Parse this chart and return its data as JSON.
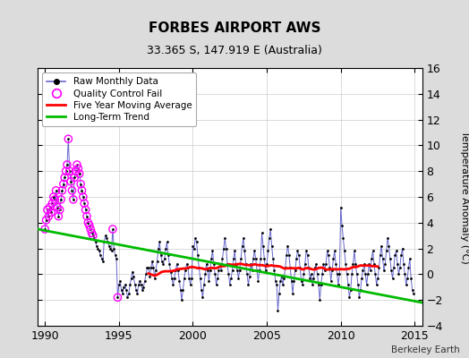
{
  "title": "FORBES AIRPORT AWS",
  "subtitle": "33.365 S, 147.919 E (Australia)",
  "ylabel_right": "Temperature Anomaly (°C)",
  "attribution": "Berkeley Earth",
  "xlim": [
    1989.5,
    2015.5
  ],
  "ylim": [
    -4,
    16
  ],
  "yticks": [
    -4,
    -2,
    0,
    2,
    4,
    6,
    8,
    10,
    12,
    14,
    16
  ],
  "xticks": [
    1990,
    1995,
    2000,
    2005,
    2010,
    2015
  ],
  "bg_color": "#dcdcdc",
  "plot_bg_color": "#ffffff",
  "raw_color": "#6666cc",
  "qc_color": "#ff00ff",
  "ma_color": "#ff0000",
  "trend_color": "#00bb00",
  "raw_data": [
    [
      1990.0,
      3.5
    ],
    [
      1990.083,
      4.2
    ],
    [
      1990.167,
      5.0
    ],
    [
      1990.25,
      4.5
    ],
    [
      1990.333,
      5.2
    ],
    [
      1990.417,
      4.8
    ],
    [
      1990.5,
      5.5
    ],
    [
      1990.583,
      6.0
    ],
    [
      1990.667,
      5.8
    ],
    [
      1990.75,
      6.5
    ],
    [
      1990.833,
      5.2
    ],
    [
      1990.917,
      4.5
    ],
    [
      1991.0,
      5.0
    ],
    [
      1991.083,
      5.8
    ],
    [
      1991.167,
      6.5
    ],
    [
      1991.25,
      7.0
    ],
    [
      1991.333,
      7.5
    ],
    [
      1991.417,
      8.0
    ],
    [
      1991.5,
      8.5
    ],
    [
      1991.583,
      10.5
    ],
    [
      1991.667,
      8.0
    ],
    [
      1991.75,
      7.2
    ],
    [
      1991.833,
      6.5
    ],
    [
      1991.917,
      5.8
    ],
    [
      1992.0,
      7.5
    ],
    [
      1992.083,
      8.0
    ],
    [
      1992.167,
      8.5
    ],
    [
      1992.25,
      8.2
    ],
    [
      1992.333,
      7.8
    ],
    [
      1992.417,
      7.0
    ],
    [
      1992.5,
      6.5
    ],
    [
      1992.583,
      6.0
    ],
    [
      1992.667,
      5.5
    ],
    [
      1992.75,
      5.0
    ],
    [
      1992.833,
      4.5
    ],
    [
      1992.917,
      4.0
    ],
    [
      1993.0,
      3.8
    ],
    [
      1993.083,
      3.5
    ],
    [
      1993.167,
      3.2
    ],
    [
      1993.25,
      3.0
    ],
    [
      1993.333,
      2.8
    ],
    [
      1993.417,
      2.5
    ],
    [
      1993.5,
      2.2
    ],
    [
      1993.583,
      2.0
    ],
    [
      1993.667,
      1.8
    ],
    [
      1993.75,
      1.5
    ],
    [
      1993.833,
      1.2
    ],
    [
      1993.917,
      1.0
    ],
    [
      1994.0,
      2.5
    ],
    [
      1994.083,
      3.0
    ],
    [
      1994.167,
      2.8
    ],
    [
      1994.25,
      2.5
    ],
    [
      1994.333,
      2.2
    ],
    [
      1994.417,
      2.0
    ],
    [
      1994.5,
      1.8
    ],
    [
      1994.583,
      3.5
    ],
    [
      1994.667,
      2.0
    ],
    [
      1994.75,
      1.5
    ],
    [
      1994.833,
      1.2
    ],
    [
      1994.917,
      -1.8
    ],
    [
      1995.0,
      -0.8
    ],
    [
      1995.083,
      -0.5
    ],
    [
      1995.167,
      -1.2
    ],
    [
      1995.25,
      -1.5
    ],
    [
      1995.333,
      -1.0
    ],
    [
      1995.417,
      -0.8
    ],
    [
      1995.5,
      -1.2
    ],
    [
      1995.583,
      -1.8
    ],
    [
      1995.667,
      -1.5
    ],
    [
      1995.75,
      -0.8
    ],
    [
      1995.833,
      -0.3
    ],
    [
      1995.917,
      0.2
    ],
    [
      1996.0,
      -0.2
    ],
    [
      1996.083,
      -0.8
    ],
    [
      1996.167,
      -1.2
    ],
    [
      1996.25,
      -1.5
    ],
    [
      1996.333,
      -0.8
    ],
    [
      1996.417,
      -0.5
    ],
    [
      1996.5,
      -0.8
    ],
    [
      1996.583,
      -1.2
    ],
    [
      1996.667,
      -1.0
    ],
    [
      1996.75,
      -0.5
    ],
    [
      1996.833,
      0.0
    ],
    [
      1996.917,
      0.5
    ],
    [
      1997.0,
      0.5
    ],
    [
      1997.083,
      -0.2
    ],
    [
      1997.167,
      0.5
    ],
    [
      1997.25,
      1.0
    ],
    [
      1997.333,
      0.5
    ],
    [
      1997.417,
      -0.3
    ],
    [
      1997.5,
      0.3
    ],
    [
      1997.583,
      1.0
    ],
    [
      1997.667,
      2.0
    ],
    [
      1997.75,
      2.5
    ],
    [
      1997.833,
      1.5
    ],
    [
      1997.917,
      1.0
    ],
    [
      1998.0,
      0.8
    ],
    [
      1998.083,
      1.2
    ],
    [
      1998.167,
      2.0
    ],
    [
      1998.25,
      2.5
    ],
    [
      1998.333,
      1.5
    ],
    [
      1998.417,
      0.8
    ],
    [
      1998.5,
      0.2
    ],
    [
      1998.583,
      -0.3
    ],
    [
      1998.667,
      -0.8
    ],
    [
      1998.75,
      -0.3
    ],
    [
      1998.833,
      0.3
    ],
    [
      1998.917,
      0.8
    ],
    [
      1999.0,
      0.3
    ],
    [
      1999.083,
      -0.5
    ],
    [
      1999.167,
      -1.2
    ],
    [
      1999.25,
      -2.0
    ],
    [
      1999.333,
      -1.2
    ],
    [
      1999.417,
      -0.3
    ],
    [
      1999.5,
      0.3
    ],
    [
      1999.583,
      0.8
    ],
    [
      1999.667,
      0.5
    ],
    [
      1999.75,
      -0.3
    ],
    [
      1999.833,
      -0.8
    ],
    [
      1999.917,
      -0.3
    ],
    [
      2000.0,
      2.2
    ],
    [
      2000.083,
      2.0
    ],
    [
      2000.167,
      2.8
    ],
    [
      2000.25,
      2.5
    ],
    [
      2000.333,
      1.5
    ],
    [
      2000.417,
      0.5
    ],
    [
      2000.5,
      -0.3
    ],
    [
      2000.583,
      -1.2
    ],
    [
      2000.667,
      -1.8
    ],
    [
      2000.75,
      -0.8
    ],
    [
      2000.833,
      0.0
    ],
    [
      2000.917,
      0.8
    ],
    [
      2001.0,
      0.3
    ],
    [
      2001.083,
      -0.5
    ],
    [
      2001.167,
      0.3
    ],
    [
      2001.25,
      1.2
    ],
    [
      2001.333,
      1.8
    ],
    [
      2001.417,
      0.8
    ],
    [
      2001.5,
      0.0
    ],
    [
      2001.583,
      -0.8
    ],
    [
      2001.667,
      -0.3
    ],
    [
      2001.75,
      0.3
    ],
    [
      2001.833,
      0.8
    ],
    [
      2001.917,
      0.3
    ],
    [
      2002.0,
      1.2
    ],
    [
      2002.083,
      2.0
    ],
    [
      2002.167,
      2.8
    ],
    [
      2002.25,
      2.0
    ],
    [
      2002.333,
      0.8
    ],
    [
      2002.417,
      0.0
    ],
    [
      2002.5,
      -0.8
    ],
    [
      2002.583,
      -0.3
    ],
    [
      2002.667,
      0.3
    ],
    [
      2002.75,
      1.2
    ],
    [
      2002.833,
      1.8
    ],
    [
      2002.917,
      0.8
    ],
    [
      2003.0,
      0.3
    ],
    [
      2003.083,
      -0.3
    ],
    [
      2003.167,
      0.3
    ],
    [
      2003.25,
      1.2
    ],
    [
      2003.333,
      2.2
    ],
    [
      2003.417,
      2.8
    ],
    [
      2003.5,
      1.8
    ],
    [
      2003.583,
      0.8
    ],
    [
      2003.667,
      0.0
    ],
    [
      2003.75,
      -0.8
    ],
    [
      2003.833,
      -0.2
    ],
    [
      2003.917,
      0.8
    ],
    [
      2004.0,
      0.3
    ],
    [
      2004.083,
      1.2
    ],
    [
      2004.167,
      1.8
    ],
    [
      2004.25,
      1.2
    ],
    [
      2004.333,
      0.3
    ],
    [
      2004.417,
      -0.5
    ],
    [
      2004.5,
      0.3
    ],
    [
      2004.583,
      1.2
    ],
    [
      2004.667,
      3.2
    ],
    [
      2004.75,
      2.2
    ],
    [
      2004.833,
      1.2
    ],
    [
      2004.917,
      0.3
    ],
    [
      2005.0,
      0.8
    ],
    [
      2005.083,
      1.8
    ],
    [
      2005.167,
      2.8
    ],
    [
      2005.25,
      3.5
    ],
    [
      2005.333,
      2.2
    ],
    [
      2005.417,
      1.2
    ],
    [
      2005.5,
      0.3
    ],
    [
      2005.583,
      -0.5
    ],
    [
      2005.667,
      -0.8
    ],
    [
      2005.75,
      -2.8
    ],
    [
      2005.833,
      -1.5
    ],
    [
      2005.917,
      -0.5
    ],
    [
      2006.0,
      -0.2
    ],
    [
      2006.083,
      -0.8
    ],
    [
      2006.167,
      -0.3
    ],
    [
      2006.25,
      0.5
    ],
    [
      2006.333,
      1.5
    ],
    [
      2006.417,
      2.2
    ],
    [
      2006.5,
      1.5
    ],
    [
      2006.583,
      0.5
    ],
    [
      2006.667,
      -0.5
    ],
    [
      2006.75,
      -1.5
    ],
    [
      2006.833,
      -0.5
    ],
    [
      2006.917,
      0.3
    ],
    [
      2007.0,
      1.2
    ],
    [
      2007.083,
      1.8
    ],
    [
      2007.167,
      1.5
    ],
    [
      2007.25,
      0.5
    ],
    [
      2007.333,
      -0.5
    ],
    [
      2007.417,
      -0.8
    ],
    [
      2007.5,
      0.0
    ],
    [
      2007.583,
      0.8
    ],
    [
      2007.667,
      1.8
    ],
    [
      2007.75,
      1.5
    ],
    [
      2007.833,
      0.5
    ],
    [
      2007.917,
      -0.3
    ],
    [
      2008.0,
      0.0
    ],
    [
      2008.083,
      -0.8
    ],
    [
      2008.167,
      -0.3
    ],
    [
      2008.25,
      0.5
    ],
    [
      2008.333,
      0.8
    ],
    [
      2008.417,
      0.0
    ],
    [
      2008.5,
      -0.8
    ],
    [
      2008.583,
      -2.0
    ],
    [
      2008.667,
      -0.8
    ],
    [
      2008.75,
      0.0
    ],
    [
      2008.833,
      0.8
    ],
    [
      2008.917,
      0.3
    ],
    [
      2009.0,
      0.8
    ],
    [
      2009.083,
      1.8
    ],
    [
      2009.167,
      1.5
    ],
    [
      2009.25,
      0.5
    ],
    [
      2009.333,
      -0.5
    ],
    [
      2009.417,
      0.3
    ],
    [
      2009.5,
      1.2
    ],
    [
      2009.583,
      1.8
    ],
    [
      2009.667,
      0.8
    ],
    [
      2009.75,
      0.0
    ],
    [
      2009.833,
      -0.8
    ],
    [
      2009.917,
      0.0
    ],
    [
      2010.0,
      5.2
    ],
    [
      2010.083,
      3.8
    ],
    [
      2010.167,
      2.8
    ],
    [
      2010.25,
      1.8
    ],
    [
      2010.333,
      0.8
    ],
    [
      2010.417,
      0.0
    ],
    [
      2010.5,
      -0.8
    ],
    [
      2010.583,
      -1.8
    ],
    [
      2010.667,
      -1.2
    ],
    [
      2010.75,
      0.0
    ],
    [
      2010.833,
      0.8
    ],
    [
      2010.917,
      1.8
    ],
    [
      2011.0,
      0.8
    ],
    [
      2011.083,
      0.0
    ],
    [
      2011.167,
      -0.8
    ],
    [
      2011.25,
      -1.8
    ],
    [
      2011.333,
      -1.2
    ],
    [
      2011.417,
      -0.3
    ],
    [
      2011.5,
      0.3
    ],
    [
      2011.583,
      0.8
    ],
    [
      2011.667,
      0.0
    ],
    [
      2011.75,
      -0.8
    ],
    [
      2011.833,
      0.0
    ],
    [
      2011.917,
      0.8
    ],
    [
      2012.0,
      0.3
    ],
    [
      2012.083,
      1.2
    ],
    [
      2012.167,
      1.8
    ],
    [
      2012.25,
      0.8
    ],
    [
      2012.333,
      0.0
    ],
    [
      2012.417,
      -0.8
    ],
    [
      2012.5,
      -0.3
    ],
    [
      2012.583,
      0.5
    ],
    [
      2012.667,
      1.5
    ],
    [
      2012.75,
      2.2
    ],
    [
      2012.833,
      1.2
    ],
    [
      2012.917,
      0.3
    ],
    [
      2013.0,
      0.8
    ],
    [
      2013.083,
      1.8
    ],
    [
      2013.167,
      2.8
    ],
    [
      2013.25,
      2.2
    ],
    [
      2013.333,
      1.2
    ],
    [
      2013.417,
      0.3
    ],
    [
      2013.5,
      -0.3
    ],
    [
      2013.583,
      0.5
    ],
    [
      2013.667,
      1.5
    ],
    [
      2013.75,
      1.8
    ],
    [
      2013.833,
      0.8
    ],
    [
      2013.917,
      0.0
    ],
    [
      2014.0,
      0.5
    ],
    [
      2014.083,
      1.5
    ],
    [
      2014.167,
      2.0
    ],
    [
      2014.25,
      0.8
    ],
    [
      2014.333,
      0.0
    ],
    [
      2014.417,
      -0.8
    ],
    [
      2014.5,
      -0.3
    ],
    [
      2014.583,
      0.5
    ],
    [
      2014.667,
      1.2
    ],
    [
      2014.75,
      -0.3
    ],
    [
      2014.833,
      -1.2
    ],
    [
      2014.917,
      -1.5
    ]
  ],
  "qc_fail_x": [
    1990.0,
    1990.083,
    1990.167,
    1990.25,
    1990.333,
    1990.417,
    1990.5,
    1990.583,
    1990.667,
    1990.75,
    1990.833,
    1990.917,
    1991.0,
    1991.083,
    1991.167,
    1991.25,
    1991.333,
    1991.417,
    1991.5,
    1991.583,
    1991.667,
    1991.75,
    1991.833,
    1991.917,
    1992.0,
    1992.083,
    1992.167,
    1992.25,
    1992.333,
    1992.417,
    1992.5,
    1992.583,
    1992.667,
    1992.75,
    1992.833,
    1992.917,
    1993.0,
    1993.083,
    1993.167,
    1993.25,
    1994.583,
    1994.917
  ],
  "qc_fail_y": [
    3.5,
    4.2,
    5.0,
    4.5,
    5.2,
    4.8,
    5.5,
    6.0,
    5.8,
    6.5,
    5.2,
    4.5,
    5.0,
    5.8,
    6.5,
    7.0,
    7.5,
    8.0,
    8.5,
    10.5,
    8.0,
    7.2,
    6.5,
    5.8,
    7.5,
    8.0,
    8.5,
    8.2,
    7.8,
    7.0,
    6.5,
    6.0,
    5.5,
    5.0,
    4.5,
    4.0,
    3.8,
    3.5,
    3.2,
    3.0,
    3.5,
    -1.8
  ],
  "trend_x": [
    1989.5,
    2015.5
  ],
  "trend_y": [
    3.5,
    -2.2
  ]
}
